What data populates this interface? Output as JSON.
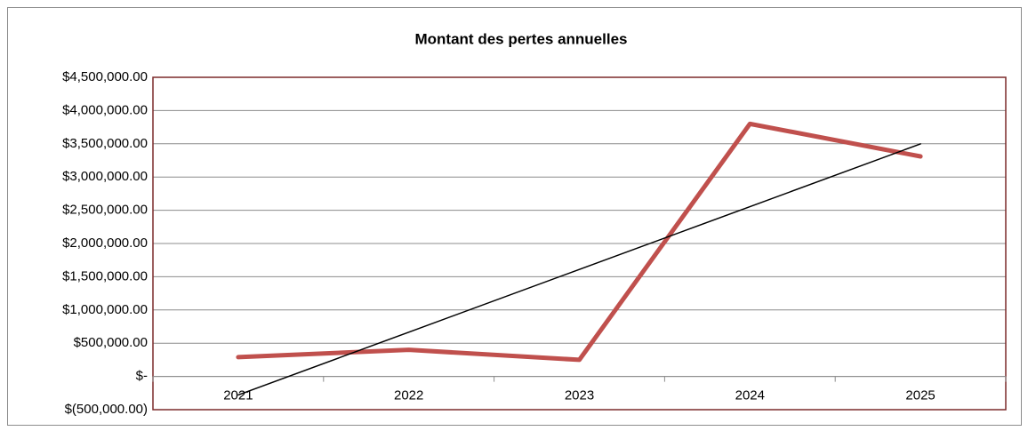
{
  "chart_data": {
    "type": "line",
    "title": "Montant des pertes annuelles",
    "categories": [
      "2021",
      "2022",
      "2023",
      "2024",
      "2025"
    ],
    "series": [
      {
        "color": "#c0504d",
        "values": [
          290000,
          400000,
          250000,
          3800000,
          3310000
        ]
      },
      {
        "color": "#000000",
        "values": [
          -278000,
          666000,
          1610000,
          2554000,
          3498000
        ]
      }
    ],
    "ylim": [
      -500000,
      4500000
    ],
    "yticks": [
      {
        "value": -500000,
        "label": "$(500,000.00)"
      },
      {
        "value": 0,
        "label": "$-"
      },
      {
        "value": 500000,
        "label": "$500,000.00"
      },
      {
        "value": 1000000,
        "label": "$1,000,000.00"
      },
      {
        "value": 1500000,
        "label": "$1,500,000.00"
      },
      {
        "value": 2000000,
        "label": "$2,000,000.00"
      },
      {
        "value": 2500000,
        "label": "$2,500,000.00"
      },
      {
        "value": 3000000,
        "label": "$3,000,000.00"
      },
      {
        "value": 3500000,
        "label": "$3,500,000.00"
      },
      {
        "value": 4000000,
        "label": "$4,000,000.00"
      },
      {
        "value": 4500000,
        "label": "$4,500,000.00"
      }
    ],
    "grid": true
  }
}
